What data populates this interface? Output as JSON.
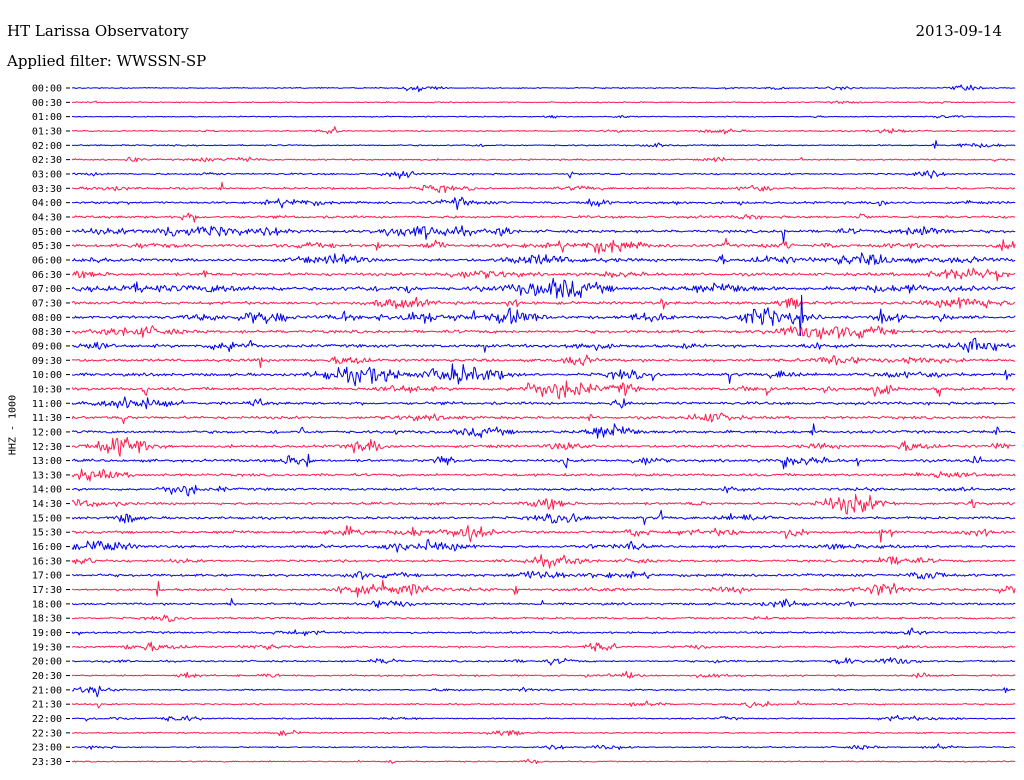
{
  "header": {
    "title": "HT Larissa Observatory",
    "date": "2013-09-14",
    "filter": "Applied filter: WWSSN-SP"
  },
  "chart_data": {
    "type": "line",
    "title": "HT Larissa Observatory",
    "subtitle": "Applied filter: WWSSN-SP",
    "date": "2013-09-14",
    "ylabel": "HHZ - 1000",
    "xlabel": "",
    "colors": [
      "#0000ee",
      "#ff1a4b"
    ],
    "grid": false,
    "rows": [
      {
        "label": "00:00",
        "color": "#0000ee",
        "activity": 0.12
      },
      {
        "label": "00:30",
        "color": "#ff1a4b",
        "activity": 0.14
      },
      {
        "label": "01:00",
        "color": "#0000ee",
        "activity": 0.12
      },
      {
        "label": "01:30",
        "color": "#ff1a4b",
        "activity": 0.18
      },
      {
        "label": "02:00",
        "color": "#0000ee",
        "activity": 0.22
      },
      {
        "label": "02:30",
        "color": "#ff1a4b",
        "activity": 0.28
      },
      {
        "label": "03:00",
        "color": "#0000ee",
        "activity": 0.32
      },
      {
        "label": "03:30",
        "color": "#ff1a4b",
        "activity": 0.42
      },
      {
        "label": "04:00",
        "color": "#0000ee",
        "activity": 0.55
      },
      {
        "label": "04:30",
        "color": "#ff1a4b",
        "activity": 0.62
      },
      {
        "label": "05:00",
        "color": "#0000ee",
        "activity": 0.72
      },
      {
        "label": "05:30",
        "color": "#ff1a4b",
        "activity": 0.75
      },
      {
        "label": "06:00",
        "color": "#0000ee",
        "activity": 0.78
      },
      {
        "label": "06:30",
        "color": "#ff1a4b",
        "activity": 0.82
      },
      {
        "label": "07:00",
        "color": "#0000ee",
        "activity": 0.85
      },
      {
        "label": "07:30",
        "color": "#ff1a4b",
        "activity": 0.8
      },
      {
        "label": "08:00",
        "color": "#0000ee",
        "activity": 0.82
      },
      {
        "label": "08:30",
        "color": "#ff1a4b",
        "activity": 0.8
      },
      {
        "label": "09:00",
        "color": "#0000ee",
        "activity": 0.78
      },
      {
        "label": "09:30",
        "color": "#ff1a4b",
        "activity": 0.75
      },
      {
        "label": "10:00",
        "color": "#0000ee",
        "activity": 0.74
      },
      {
        "label": "10:30",
        "color": "#ff1a4b",
        "activity": 0.76
      },
      {
        "label": "11:00",
        "color": "#0000ee",
        "activity": 0.74
      },
      {
        "label": "11:30",
        "color": "#ff1a4b",
        "activity": 0.72
      },
      {
        "label": "12:00",
        "color": "#0000ee",
        "activity": 0.72
      },
      {
        "label": "12:30",
        "color": "#ff1a4b",
        "activity": 0.7
      },
      {
        "label": "13:00",
        "color": "#0000ee",
        "activity": 0.68
      },
      {
        "label": "13:30",
        "color": "#ff1a4b",
        "activity": 0.66
      },
      {
        "label": "14:00",
        "color": "#0000ee",
        "activity": 0.64
      },
      {
        "label": "14:30",
        "color": "#ff1a4b",
        "activity": 0.62
      },
      {
        "label": "15:00",
        "color": "#0000ee",
        "activity": 0.62
      },
      {
        "label": "15:30",
        "color": "#ff1a4b",
        "activity": 0.6
      },
      {
        "label": "16:00",
        "color": "#0000ee",
        "activity": 0.6
      },
      {
        "label": "16:30",
        "color": "#ff1a4b",
        "activity": 0.58
      },
      {
        "label": "17:00",
        "color": "#0000ee",
        "activity": 0.64
      },
      {
        "label": "17:30",
        "color": "#ff1a4b",
        "activity": 0.56
      },
      {
        "label": "18:00",
        "color": "#0000ee",
        "activity": 0.5
      },
      {
        "label": "18:30",
        "color": "#ff1a4b",
        "activity": 0.46
      },
      {
        "label": "19:00",
        "color": "#0000ee",
        "activity": 0.42
      },
      {
        "label": "19:30",
        "color": "#ff1a4b",
        "activity": 0.38
      },
      {
        "label": "20:00",
        "color": "#0000ee",
        "activity": 0.34
      },
      {
        "label": "20:30",
        "color": "#ff1a4b",
        "activity": 0.34
      },
      {
        "label": "21:00",
        "color": "#0000ee",
        "activity": 0.3
      },
      {
        "label": "21:30",
        "color": "#ff1a4b",
        "activity": 0.26
      },
      {
        "label": "22:00",
        "color": "#0000ee",
        "activity": 0.22
      },
      {
        "label": "22:30",
        "color": "#ff1a4b",
        "activity": 0.2
      },
      {
        "label": "23:00",
        "color": "#0000ee",
        "activity": 0.18
      },
      {
        "label": "23:30",
        "color": "#ff1a4b",
        "activity": 0.16
      }
    ]
  }
}
